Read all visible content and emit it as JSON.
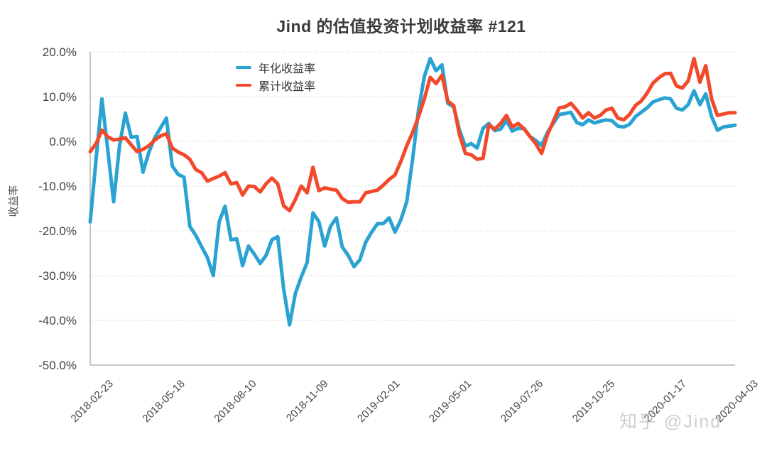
{
  "watermark": "知乎 @Jind",
  "chart_data": {
    "type": "line",
    "title": "Jind 的估值投资计划收益率 #121",
    "xlabel": "",
    "ylabel": "收益率",
    "ylim": [
      -50,
      20
    ],
    "ytick_step": 10,
    "ytick_labels": [
      "20.0%",
      "10.0%",
      "0.0%",
      "-10.0%",
      "-20.0%",
      "-30.0%",
      "-40.0%",
      "-50.0%"
    ],
    "x_tick_labels": [
      "2018-02-23",
      "2018-05-18",
      "2018-08-10",
      "2018-11-09",
      "2019-02-01",
      "2019-05-01",
      "2019-07-26",
      "2019-10-25",
      "2020-01-17",
      "2020-04-03"
    ],
    "grid": "dotted-horizontal",
    "legend_position": "inside-top-left",
    "axis_color": "#b3b3b3",
    "grid_color": "#cccccc",
    "tick_label_color": "#444444",
    "series": [
      {
        "name": "年化收益率",
        "color": "#2AA3D2",
        "values": [
          -18,
          -4,
          9.5,
          -2,
          -13.5,
          -1,
          6.3,
          0.9,
          1.1,
          -6.9,
          -2.5,
          0.8,
          3,
          5.2,
          -5.5,
          -7.4,
          -8,
          -19,
          -21,
          -23.5,
          -26,
          -30,
          -18,
          -14.5,
          -22,
          -21.8,
          -27.8,
          -23.4,
          -25.2,
          -27.3,
          -25.5,
          -22,
          -21.3,
          -33,
          -41,
          -34,
          -30.3,
          -27.1,
          -16,
          -17.9,
          -23.4,
          -19,
          -17.1,
          -23.6,
          -25.5,
          -28,
          -26.5,
          -22.5,
          -20.3,
          -18.4,
          -18.4,
          -17.1,
          -20.3,
          -17.5,
          -13.5,
          -4,
          7,
          14.5,
          18.5,
          15.8,
          17.1,
          8.5,
          7.7,
          2.5,
          -1.1,
          -0.5,
          -1.5,
          2.9,
          4,
          2.4,
          2.7,
          4.7,
          2.3,
          2.9,
          2.9,
          1.1,
          0.2,
          -0.9,
          2,
          4,
          6,
          6.2,
          6.5,
          4.2,
          3.7,
          4.8,
          4.1,
          4.5,
          4.8,
          4.6,
          3.4,
          3.2,
          3.8,
          5.5,
          6.5,
          7.5,
          8.8,
          9.3,
          9.7,
          9.5,
          7.4,
          7,
          8.2,
          11.3,
          8.2,
          10.6,
          5.5,
          2.5,
          3.2,
          3.4,
          3.6
        ]
      },
      {
        "name": "累计收益率",
        "color": "#F2492B",
        "values": [
          -2.3,
          -0.5,
          2.5,
          1,
          0.3,
          0.5,
          0.8,
          -0.8,
          -2.3,
          -1.8,
          -1,
          0.3,
          1.2,
          1.7,
          -1.5,
          -2.4,
          -3,
          -4,
          -6.3,
          -7,
          -8.9,
          -8.3,
          -7.8,
          -7,
          -9.5,
          -9.2,
          -12,
          -10,
          -10.1,
          -11.3,
          -9.5,
          -8.2,
          -9.5,
          -14.4,
          -15.5,
          -13,
          -10,
          -11.5,
          -5.8,
          -11,
          -10.4,
          -10.7,
          -10.9,
          -12.8,
          -13.6,
          -13.5,
          -13.5,
          -11.5,
          -11.2,
          -10.9,
          -9.8,
          -8.5,
          -7.5,
          -4.5,
          -1,
          2,
          5.5,
          9.5,
          14.3,
          12.9,
          14.8,
          9,
          8,
          1.5,
          -2.7,
          -3,
          -4,
          -3.8,
          3.7,
          2.7,
          4,
          5.8,
          3.2,
          4,
          2.8,
          1.1,
          -0.5,
          -2.7,
          1.5,
          4.5,
          7.5,
          7.7,
          8.5,
          7,
          5.2,
          6.4,
          5.2,
          5.8,
          7,
          7.4,
          5.2,
          4.8,
          6,
          8,
          9,
          10.8,
          13,
          14.2,
          15.1,
          15.2,
          12.4,
          11.9,
          13.5,
          18.5,
          13.2,
          16.9,
          9.5,
          5.8,
          6.1,
          6.4,
          6.4
        ]
      }
    ]
  }
}
